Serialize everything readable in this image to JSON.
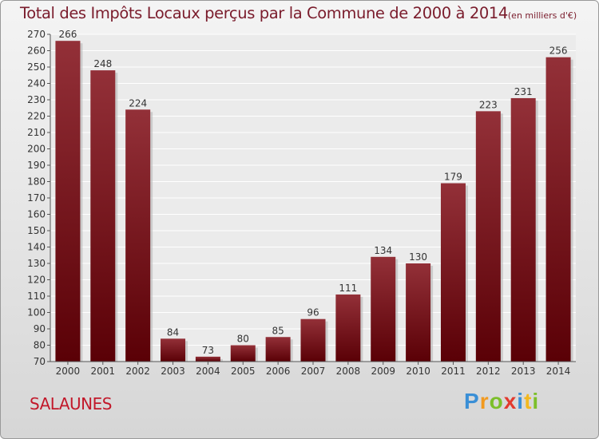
{
  "chart_data": {
    "type": "bar",
    "title": "Total des Impôts Locaux perçus par la Commune de 2000 à 2014",
    "unit_label": "(en milliers d'€)",
    "categories": [
      "2000",
      "2001",
      "2002",
      "2003",
      "2004",
      "2005",
      "2006",
      "2007",
      "2008",
      "2009",
      "2010",
      "2011",
      "2012",
      "2013",
      "2014"
    ],
    "values": [
      266,
      248,
      224,
      84,
      73,
      80,
      85,
      96,
      111,
      134,
      130,
      179,
      223,
      231,
      256
    ],
    "ylim": [
      70,
      270
    ],
    "ytick_step": 10,
    "xlabel": "",
    "ylabel": "",
    "grid": true
  },
  "commune": "SALAUNES",
  "brand": {
    "letters": [
      "P",
      "r",
      "o",
      "x",
      "i",
      "t",
      "i"
    ],
    "colors": [
      "#3a8fd6",
      "#f29a1f",
      "#7cbf2a",
      "#e23a2e",
      "#3a8fd6",
      "#f2b81f",
      "#7cbf2a"
    ]
  },
  "colors": {
    "bar_light": "#933038",
    "bar_dark": "#5a0006",
    "text": "#7a1c2c"
  }
}
